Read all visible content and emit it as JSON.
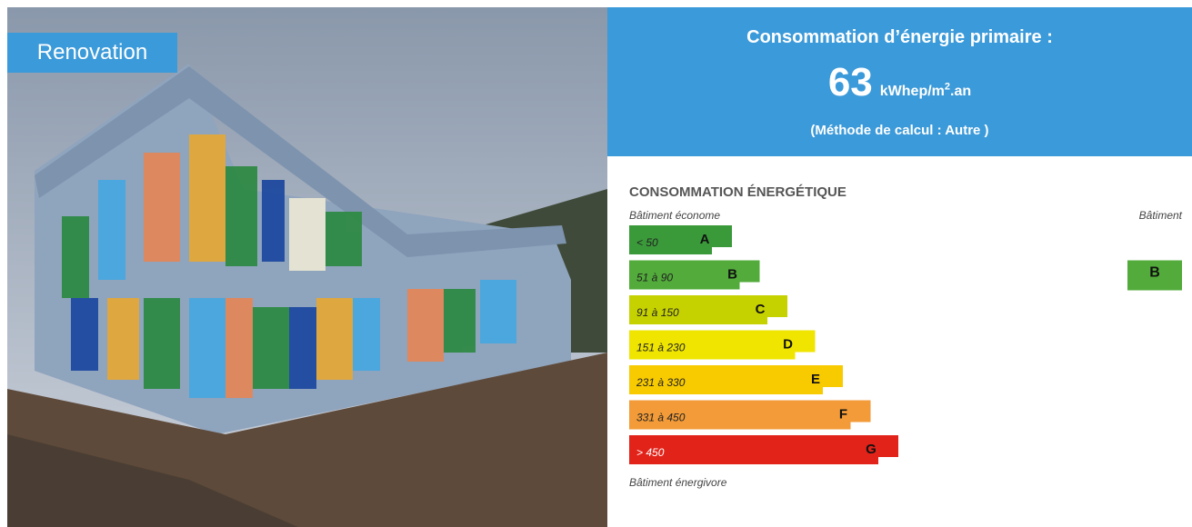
{
  "photo": {
    "label": "Renovation"
  },
  "header": {
    "title": "Consommation d’énergie primaire :",
    "value": 63,
    "unit": "kWhep/m",
    "unit_sup": "2",
    "unit_end": ".an",
    "method": "(Méthode de calcul : Autre )"
  },
  "label": {
    "title": "CONSOMMATION ÉNERGÉTIQUE",
    "top_left": "Bâtiment économe",
    "top_right": "Bâtiment",
    "bottom_left": "Bâtiment énergivore",
    "classes": [
      {
        "range": "< 50",
        "letter": "A",
        "color": "#3a9a3a"
      },
      {
        "range": "51 à 90",
        "letter": "B",
        "color": "#52ab3a"
      },
      {
        "range": "91 à 150",
        "letter": "C",
        "color": "#c6d200"
      },
      {
        "range": "151 à 230",
        "letter": "D",
        "color": "#efe500"
      },
      {
        "range": "231 à 330",
        "letter": "E",
        "color": "#f8ca00"
      },
      {
        "range": "331 à 450",
        "letter": "F",
        "color": "#f29b38"
      },
      {
        "range": "> 450",
        "letter": "G",
        "color": "#e2231a"
      }
    ],
    "current": {
      "letter": "B",
      "color": "#52ab3a"
    }
  }
}
